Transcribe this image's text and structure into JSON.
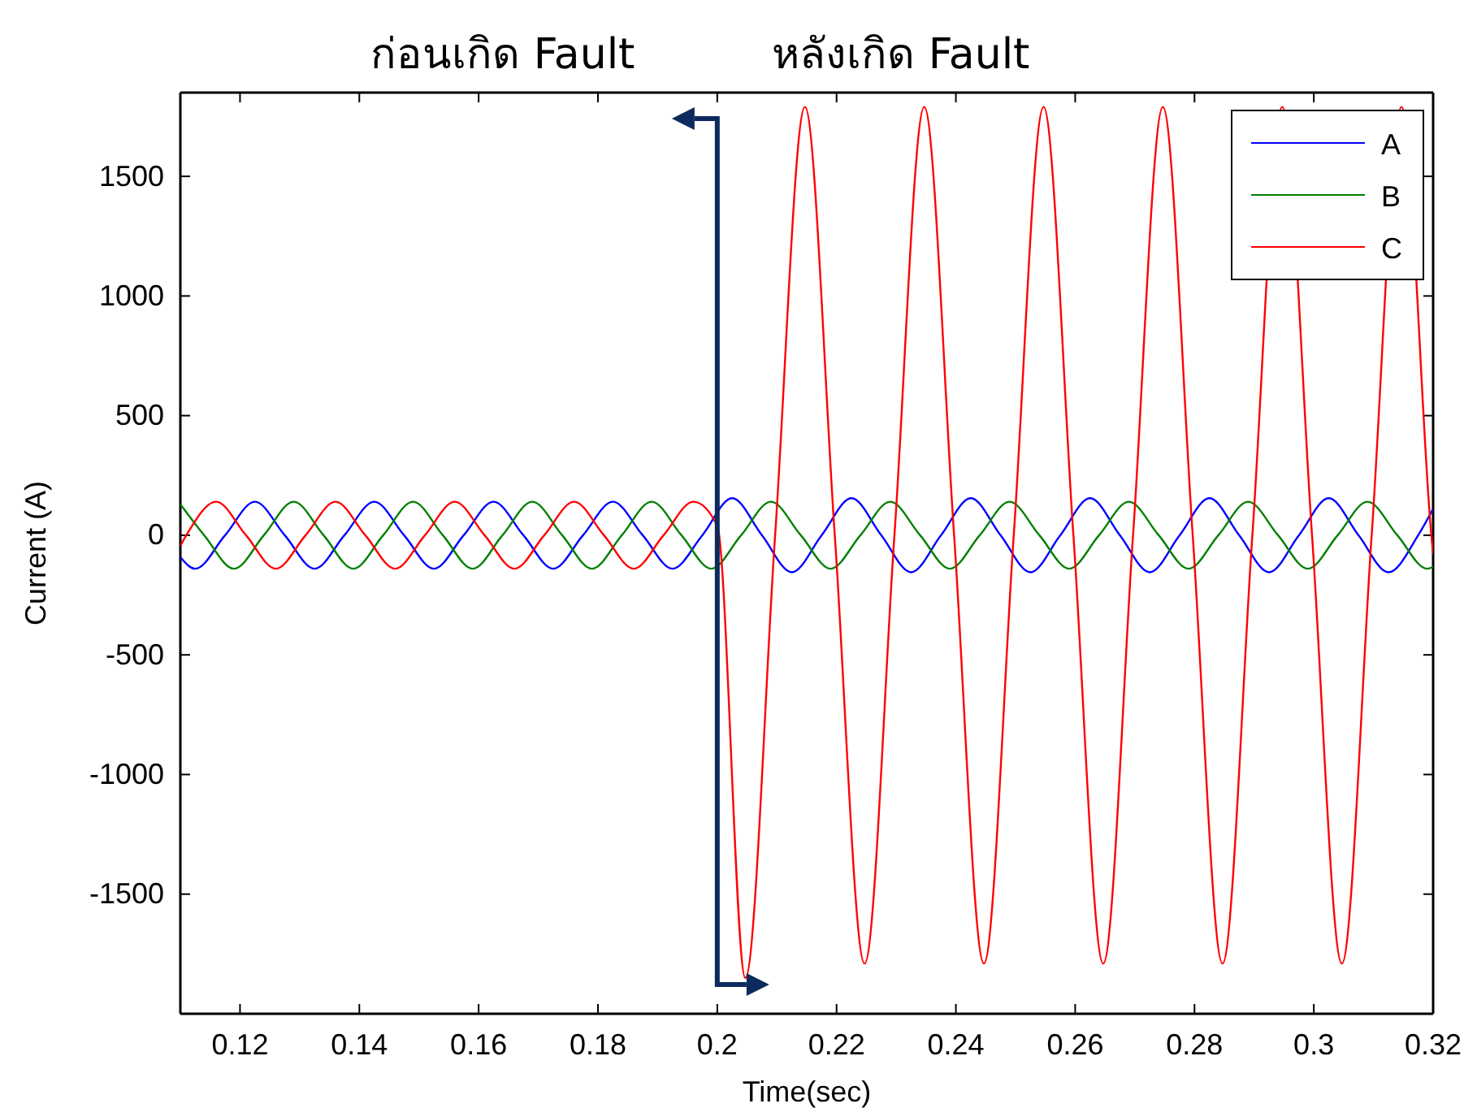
{
  "chart_data": {
    "type": "line",
    "xlabel": "Time(sec)",
    "ylabel": "Current (A)",
    "xlim": [
      0.11,
      0.32
    ],
    "xticks": [
      0.12,
      0.14,
      0.16,
      0.18,
      0.2,
      0.22,
      0.24,
      0.26,
      0.28,
      0.3,
      0.32
    ],
    "ylim": [
      -2000,
      1850
    ],
    "yticks": [
      -1500,
      -1000,
      -500,
      0,
      500,
      1000,
      1500
    ],
    "grid": false,
    "legend": "top right",
    "marker": "none",
    "line_style": "solid",
    "annotations": [
      "ก่อนเกิด Fault",
      "หลังเกิด Fault"
    ],
    "ref_lines": [
      {
        "axis": "x",
        "value": 0.2,
        "label": null,
        "color": "#0d2a5c"
      }
    ],
    "series": [
      {
        "name": "A",
        "color": "#0000ff",
        "x": [
          0.11,
          0.1125,
          0.1175,
          0.1225,
          0.1275,
          0.1325,
          0.1375,
          0.1425,
          0.1475,
          0.1525,
          0.1575,
          0.1625,
          0.1675,
          0.1725,
          0.1775,
          0.1825,
          0.1875,
          0.1925,
          0.1975,
          0.2025,
          0.2075,
          0.2125,
          0.2175,
          0.2225,
          0.2275,
          0.2325,
          0.2375,
          0.2425,
          0.2475,
          0.2525,
          0.2575,
          0.2625,
          0.2675,
          0.2725,
          0.2775,
          0.2825,
          0.2875,
          0.2925,
          0.2975,
          0.3025,
          0.3075,
          0.3125,
          0.3175,
          0.32
        ],
        "values": [
          -92,
          -140,
          0,
          140,
          0,
          -140,
          0,
          140,
          0,
          -140,
          0,
          140,
          0,
          -140,
          0,
          140,
          0,
          -140,
          0,
          155,
          0,
          -155,
          0,
          155,
          0,
          -155,
          0,
          155,
          0,
          -155,
          0,
          155,
          0,
          -155,
          0,
          155,
          0,
          -155,
          0,
          155,
          0,
          -155,
          0,
          110
        ]
      },
      {
        "name": "B",
        "color": "#008000",
        "x": [
          0.11,
          0.114,
          0.119,
          0.124,
          0.129,
          0.134,
          0.139,
          0.144,
          0.149,
          0.154,
          0.159,
          0.164,
          0.169,
          0.174,
          0.179,
          0.184,
          0.189,
          0.194,
          0.199,
          0.204,
          0.209,
          0.214,
          0.219,
          0.224,
          0.229,
          0.234,
          0.239,
          0.244,
          0.249,
          0.254,
          0.259,
          0.264,
          0.269,
          0.274,
          0.279,
          0.284,
          0.289,
          0.294,
          0.299,
          0.304,
          0.309,
          0.314,
          0.319,
          0.32
        ],
        "values": [
          130,
          0,
          -140,
          0,
          140,
          0,
          -140,
          0,
          140,
          0,
          -140,
          0,
          140,
          0,
          -140,
          0,
          140,
          0,
          -140,
          0,
          140,
          0,
          -140,
          0,
          140,
          0,
          -140,
          0,
          140,
          0,
          -140,
          0,
          140,
          0,
          -140,
          0,
          140,
          0,
          -140,
          0,
          140,
          0,
          -140,
          -132
        ]
      },
      {
        "name": "C",
        "color": "#ff0000",
        "x": [
          0.11,
          0.111,
          0.116,
          0.121,
          0.126,
          0.131,
          0.136,
          0.141,
          0.146,
          0.151,
          0.156,
          0.161,
          0.166,
          0.171,
          0.176,
          0.181,
          0.186,
          0.191,
          0.196,
          0.2,
          0.2047,
          0.2097,
          0.2147,
          0.2197,
          0.2247,
          0.2297,
          0.2347,
          0.2397,
          0.2447,
          0.2497,
          0.2547,
          0.2597,
          0.2647,
          0.2697,
          0.2747,
          0.2797,
          0.2847,
          0.2897,
          0.2947,
          0.2997,
          0.3047,
          0.3097,
          0.3147,
          0.3197,
          0.32
        ],
        "values": [
          -44,
          0,
          140,
          0,
          -140,
          0,
          140,
          0,
          -140,
          0,
          140,
          0,
          -140,
          0,
          140,
          0,
          -140,
          0,
          140,
          40,
          -1850,
          0,
          1790,
          0,
          -1790,
          0,
          1790,
          0,
          -1790,
          0,
          1790,
          0,
          -1790,
          0,
          1790,
          0,
          -1790,
          0,
          1790,
          0,
          -1790,
          0,
          1790,
          0,
          -80
        ]
      }
    ]
  }
}
